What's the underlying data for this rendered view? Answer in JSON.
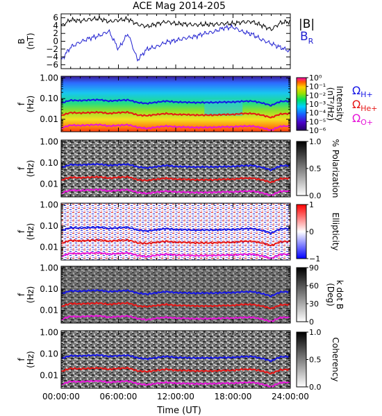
{
  "title": "ACE Mag 2014-205",
  "colors": {
    "B_total": "#000000",
    "B_R": "#1f1fd0",
    "omega_h": "#1515e6",
    "omega_he": "#e61515",
    "omega_o": "#e615d9"
  },
  "x_axis": {
    "label": "Time (UT)",
    "ticks": [
      "00:00:00",
      "06:00:00",
      "12:00:00",
      "18:00:00",
      "24:00:00"
    ],
    "range_hours": [
      0,
      24
    ]
  },
  "freq_axis": {
    "label_f": "f",
    "label_unit": "(Hz)",
    "ticks": [
      "1.00",
      "0.10",
      "0.01"
    ],
    "scale": "log",
    "range_hz": [
      0.0025,
      1.2
    ]
  },
  "gyro_labels": {
    "h": {
      "base": "Ω",
      "sub": "H+"
    },
    "he": {
      "base": "Ω",
      "sub": "He+"
    },
    "o": {
      "base": "Ω",
      "sub": "O+"
    }
  },
  "panels": [
    {
      "id": "field",
      "ylabel_main": "B",
      "ylabel_unit": "(nT)",
      "yticks": [
        "6",
        "4",
        "2",
        "0",
        "−2",
        "−4",
        "−6"
      ],
      "legend": {
        "total": "|B|",
        "radial_base": "B",
        "radial_sub": "R"
      }
    },
    {
      "id": "intensity",
      "cb_label": "Intensity",
      "cb_unit": "(nT²/Hz)",
      "cb_ticks": [
        "10⁰",
        "10⁻¹",
        "10⁻²",
        "10⁻³",
        "10⁻⁴",
        "10⁻⁵",
        "10⁻⁶"
      ]
    },
    {
      "id": "polarization",
      "cb_label": "% Polarization",
      "cb_ticks": [
        "1.0",
        "0.5",
        "0.0"
      ]
    },
    {
      "id": "ellipticity",
      "cb_label": "Ellipticity",
      "cb_ticks": [
        "1",
        "0",
        "−1"
      ]
    },
    {
      "id": "kdotb",
      "cb_label": "k dot B",
      "cb_unit": "(Deg)",
      "cb_ticks": [
        "90",
        "60",
        "30",
        "0"
      ]
    },
    {
      "id": "coherence",
      "cb_label": "Coherency",
      "cb_ticks": [
        "1.0",
        "0.5",
        "0.0"
      ]
    }
  ],
  "chart_data": [
    {
      "type": "line",
      "title": "ACE Mag 2014-205",
      "xlabel": "Time (UT)",
      "ylabel": "B (nT)",
      "ylim": [
        -7,
        7
      ],
      "x": [
        0,
        1,
        2,
        3,
        4,
        5,
        6,
        7,
        8,
        9,
        10,
        11,
        12,
        13,
        14,
        15,
        16,
        17,
        18,
        19,
        20,
        21,
        22,
        23,
        24
      ],
      "series": [
        {
          "name": "|B|",
          "values": [
            3.9,
            5.5,
            5.2,
            5.6,
            5.8,
            5.0,
            5.4,
            5.7,
            4.3,
            3.8,
            4.4,
            5.0,
            4.5,
            4.4,
            4.2,
            4.3,
            4.3,
            4.5,
            4.5,
            4.9,
            5.0,
            4.1,
            3.0,
            4.8,
            5.0
          ]
        },
        {
          "name": "B_R",
          "values": [
            -4.8,
            -1.5,
            -0.2,
            0.8,
            1.4,
            2.6,
            -2.0,
            2.0,
            -4.8,
            -2.0,
            -1.4,
            -0.2,
            0.2,
            0.8,
            1.2,
            2.0,
            2.4,
            3.4,
            3.6,
            2.4,
            1.8,
            0.4,
            -0.6,
            -1.6,
            -2.6
          ]
        }
      ]
    },
    {
      "type": "line",
      "xlabel": "Time (UT)",
      "ylabel": "f (Hz)",
      "x": [
        0,
        1,
        2,
        3,
        4,
        5,
        6,
        7,
        8,
        9,
        10,
        11,
        12,
        13,
        14,
        15,
        16,
        17,
        18,
        19,
        20,
        21,
        22,
        23,
        24
      ],
      "series": [
        {
          "name": "Ω_H+",
          "values": [
            0.06,
            0.083,
            0.08,
            0.085,
            0.088,
            0.076,
            0.082,
            0.086,
            0.065,
            0.058,
            0.067,
            0.076,
            0.068,
            0.067,
            0.064,
            0.065,
            0.065,
            0.068,
            0.068,
            0.074,
            0.076,
            0.062,
            0.046,
            0.073,
            0.076
          ]
        },
        {
          "name": "Ω_He+",
          "values": [
            0.015,
            0.021,
            0.02,
            0.021,
            0.022,
            0.019,
            0.021,
            0.022,
            0.016,
            0.015,
            0.017,
            0.019,
            0.017,
            0.017,
            0.016,
            0.016,
            0.016,
            0.017,
            0.017,
            0.019,
            0.019,
            0.016,
            0.012,
            0.018,
            0.019
          ]
        },
        {
          "name": "Ω_O+",
          "values": [
            0.0037,
            0.0052,
            0.005,
            0.0053,
            0.0055,
            0.0047,
            0.0051,
            0.0054,
            0.0041,
            0.0036,
            0.0042,
            0.0047,
            0.0043,
            0.0042,
            0.004,
            0.0041,
            0.0041,
            0.0043,
            0.0043,
            0.0046,
            0.0047,
            0.0039,
            0.0029,
            0.0046,
            0.0047
          ]
        }
      ]
    }
  ]
}
